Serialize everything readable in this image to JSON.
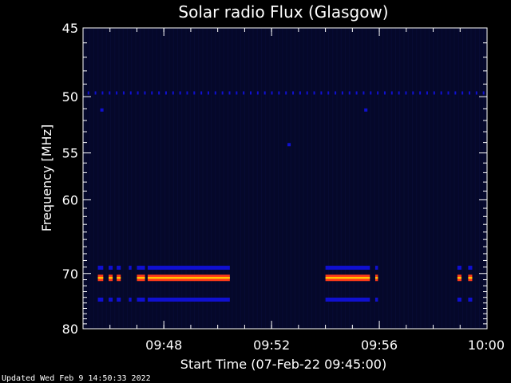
{
  "chart_data": {
    "type": "heatmap",
    "title": "Solar radio Flux (Glasgow)",
    "xlabel": "Start Time (07-Feb-22 09:45:00)",
    "ylabel": "Frequency [MHz]",
    "x_ticks": [
      "09:48",
      "09:52",
      "09:56",
      "10:00"
    ],
    "x_tick_minutes": [
      3,
      7,
      11,
      15
    ],
    "x_range_minutes": [
      0,
      15
    ],
    "y_ticks": [
      45,
      50,
      55,
      60,
      70,
      80
    ],
    "y_range_mhz": [
      45,
      80
    ],
    "y_scale": "reciprocal",
    "background_color": "#000000",
    "plot_color": "#05082a",
    "band_colors": {
      "strong": "#ff3b1a",
      "core": "#ffe000",
      "weak": "#1010d0"
    },
    "bands": [
      {
        "freq_mhz": 70.7,
        "intensity": "strong",
        "segments": [
          [
            0.55,
            0.75
          ],
          [
            0.95,
            1.1
          ],
          [
            1.25,
            1.4
          ],
          [
            2.0,
            2.3
          ],
          [
            2.4,
            5.45
          ],
          [
            9.0,
            10.65
          ],
          [
            10.85,
            10.95
          ],
          [
            13.9,
            14.05
          ],
          [
            14.3,
            14.45
          ]
        ]
      },
      {
        "freq_mhz": 69.1,
        "intensity": "weak",
        "segments": [
          [
            0.55,
            0.75
          ],
          [
            0.95,
            1.1
          ],
          [
            1.25,
            1.4
          ],
          [
            1.7,
            1.8
          ],
          [
            2.0,
            2.3
          ],
          [
            2.4,
            5.45
          ],
          [
            9.0,
            10.65
          ],
          [
            10.85,
            10.95
          ],
          [
            13.9,
            14.05
          ],
          [
            14.3,
            14.45
          ]
        ]
      },
      {
        "freq_mhz": 74.4,
        "intensity": "weak",
        "segments": [
          [
            0.55,
            0.75
          ],
          [
            0.95,
            1.1
          ],
          [
            1.25,
            1.4
          ],
          [
            1.7,
            1.8
          ],
          [
            2.0,
            2.3
          ],
          [
            2.4,
            5.45
          ],
          [
            9.0,
            10.65
          ],
          [
            10.85,
            10.95
          ],
          [
            13.9,
            14.05
          ],
          [
            14.3,
            14.45
          ]
        ]
      },
      {
        "freq_mhz": 49.7,
        "intensity": "weak",
        "pattern": "dotted"
      }
    ],
    "spots": [
      {
        "minute": 7.65,
        "freq_mhz": 54.2
      },
      {
        "minute": 0.7,
        "freq_mhz": 51.1
      },
      {
        "minute": 10.5,
        "freq_mhz": 51.1
      }
    ],
    "grid": false,
    "legend": "none"
  },
  "footer": {
    "updated": "Updated Wed Feb  9 14:50:33 2022"
  }
}
